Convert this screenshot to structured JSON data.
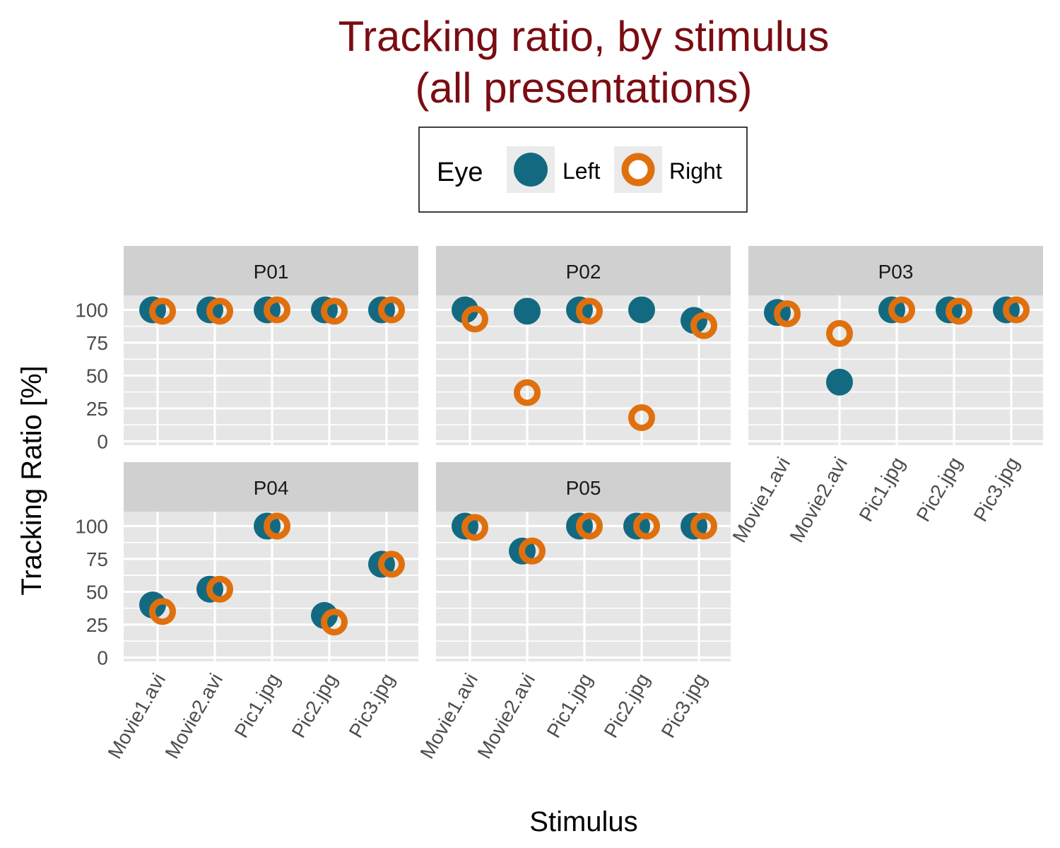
{
  "chart_data": {
    "type": "scatter",
    "title": [
      "Tracking ratio, by stimulus",
      "(all presentations)"
    ],
    "xlabel": "Stimulus",
    "ylabel": "Tracking Ratio [%]",
    "ylim": [
      -3,
      111
    ],
    "yticks": [
      0,
      25,
      50,
      75,
      100
    ],
    "categories": [
      "Movie1.avi",
      "Movie2.avi",
      "Pic1.jpg",
      "Pic2.jpg",
      "Pic3.jpg"
    ],
    "legend": {
      "title": "Eye",
      "position": "top"
    },
    "series": [
      {
        "name": "Left",
        "color": "#136a80",
        "marker": "filled-circle"
      },
      {
        "name": "Right",
        "color": "#e0700d",
        "marker": "open-circle"
      }
    ],
    "panels": [
      {
        "label": "P01",
        "left": [
          100,
          100,
          100,
          100,
          100
        ],
        "right": [
          99,
          99,
          100,
          99,
          100
        ]
      },
      {
        "label": "P02",
        "left": [
          100,
          99,
          100,
          100,
          92
        ],
        "right": [
          93,
          37,
          99,
          18,
          88
        ]
      },
      {
        "label": "P03",
        "left": [
          98,
          45,
          100,
          100,
          100
        ],
        "right": [
          97,
          82,
          100,
          99,
          100
        ]
      },
      {
        "label": "P04",
        "left": [
          40,
          52,
          100,
          32,
          71
        ],
        "right": [
          35,
          52,
          100,
          27,
          71
        ]
      },
      {
        "label": "P05",
        "left": [
          100,
          81,
          100,
          100,
          100
        ],
        "right": [
          99,
          81,
          100,
          100,
          100
        ]
      }
    ],
    "grid": true
  },
  "colors": {
    "title": "#7a0c12",
    "panel_bg": "#e6e6e6",
    "strip_bg": "#d0d0d0",
    "grid": "#ffffff"
  }
}
